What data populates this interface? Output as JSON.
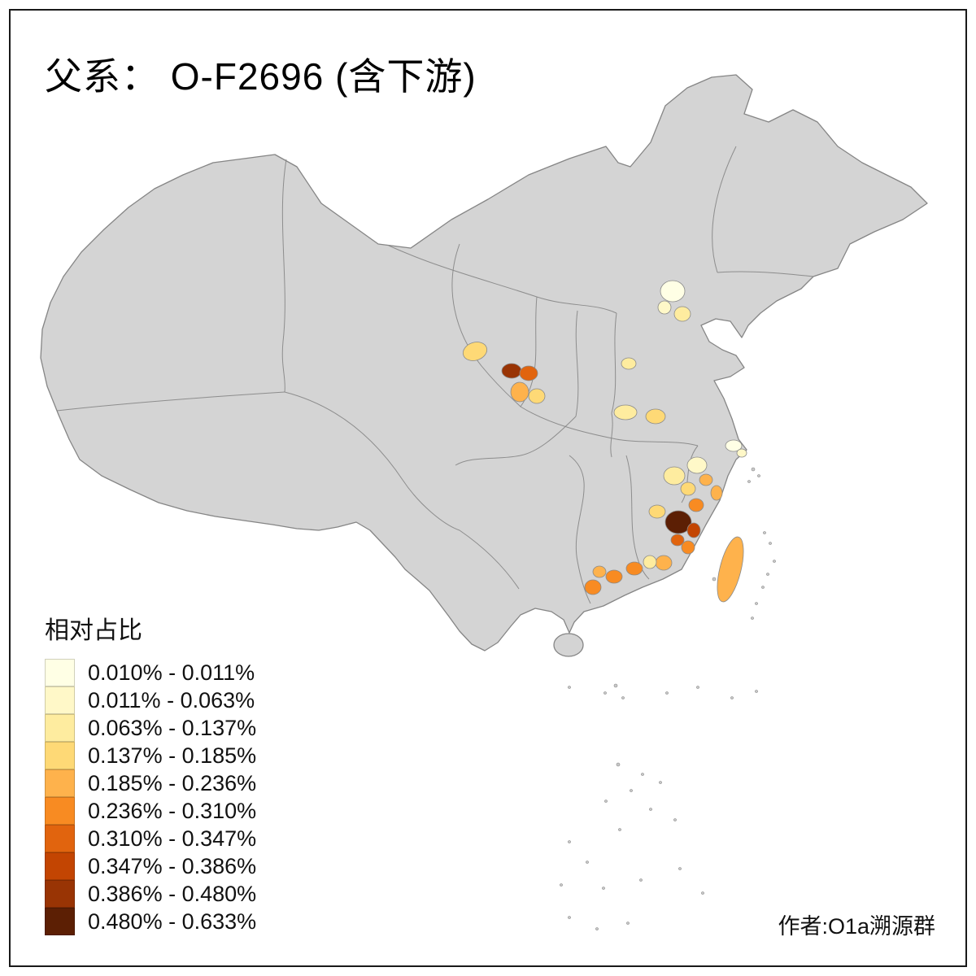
{
  "title": "父系： O-F2696 (含下游)",
  "credit": "作者:O1a溯源群",
  "legend": {
    "title": "相对占比",
    "items": [
      {
        "label": "0.010% - 0.011%",
        "color": "#FFFFE5"
      },
      {
        "label": "0.011% - 0.063%",
        "color": "#FFF8C8"
      },
      {
        "label": "0.063% - 0.137%",
        "color": "#FEEC9F"
      },
      {
        "label": "0.137% - 0.185%",
        "color": "#FED976"
      },
      {
        "label": "0.185% - 0.236%",
        "color": "#FEB24C"
      },
      {
        "label": "0.236% - 0.310%",
        "color": "#F88B22"
      },
      {
        "label": "0.310% - 0.347%",
        "color": "#E1640E"
      },
      {
        "label": "0.347% - 0.386%",
        "color": "#C34502"
      },
      {
        "label": "0.386% - 0.480%",
        "color": "#993404"
      },
      {
        "label": "0.480% - 0.633%",
        "color": "#5C1F04"
      }
    ]
  },
  "map": {
    "land_color": "#d4d4d4",
    "border_color": "#858585",
    "island_color": "#c9c9c9",
    "sea_color": "#ffffff"
  }
}
